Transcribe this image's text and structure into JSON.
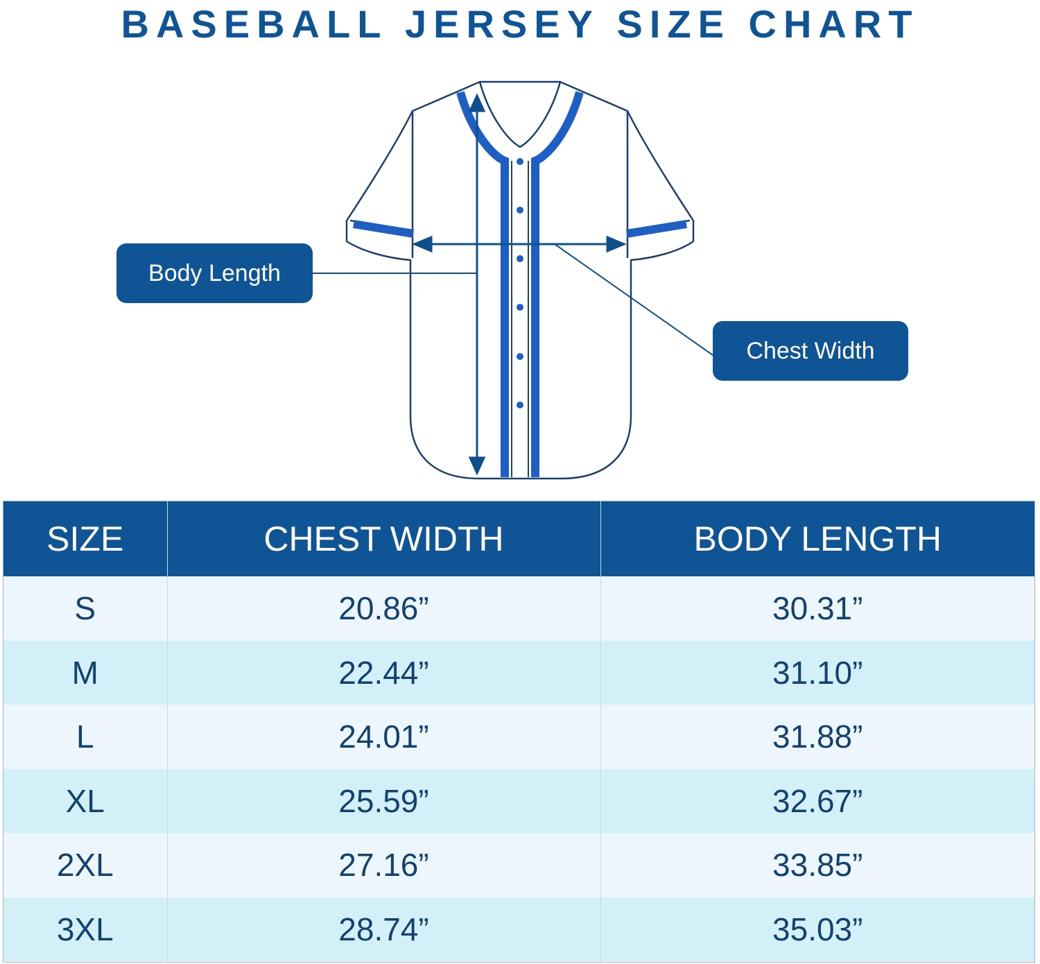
{
  "title": "BASEBALL JERSEY SIZE CHART",
  "diagram": {
    "labels": {
      "body_length": "Body Length",
      "chest_width": "Chest Width"
    },
    "colors": {
      "outline": "#1b3f6e",
      "trim": "#1f5fc4",
      "label_bg": "#0f5596"
    }
  },
  "table": {
    "headers": [
      "SIZE",
      "CHEST WIDTH",
      "BODY LENGTH"
    ],
    "rows": [
      {
        "size": "S",
        "chest": "20.86”",
        "length": "30.31”"
      },
      {
        "size": "M",
        "chest": "22.44”",
        "length": "31.10”"
      },
      {
        "size": "L",
        "chest": "24.01”",
        "length": "31.88”"
      },
      {
        "size": "XL",
        "chest": "25.59”",
        "length": "32.67”"
      },
      {
        "size": "2XL",
        "chest": "27.16”",
        "length": "33.85”"
      },
      {
        "size": "3XL",
        "chest": "28.74”",
        "length": "35.03”"
      }
    ],
    "colors": {
      "header_bg": "#0f5596",
      "row_odd": "#ecf6fc",
      "row_even": "#d3f0f9",
      "text": "#12416f"
    }
  }
}
